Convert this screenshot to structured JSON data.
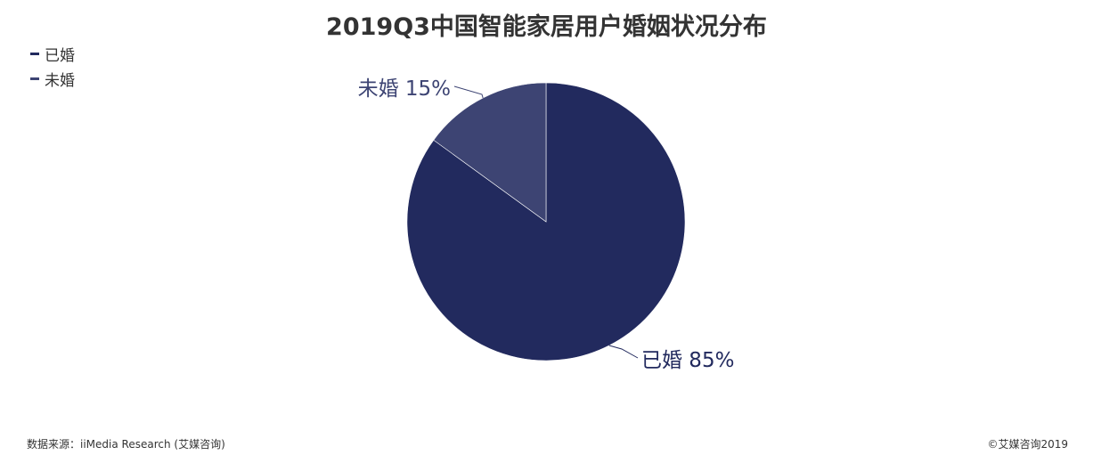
{
  "footer": {
    "source": "数据来源：iiMedia Research (艾媒咨询)",
    "copyright": "©艾媒咨询2019"
  },
  "chart_data": {
    "type": "pie",
    "title": "2019Q3中国智能家居用户婚姻状况分布",
    "legend_position": "top-left",
    "slices": [
      {
        "label": "已婚",
        "value": 85,
        "display": "已婚 85%",
        "color": "#222a5e"
      },
      {
        "label": "未婚",
        "value": 15,
        "display": "未婚 15%",
        "color": "#3d4473"
      }
    ]
  }
}
